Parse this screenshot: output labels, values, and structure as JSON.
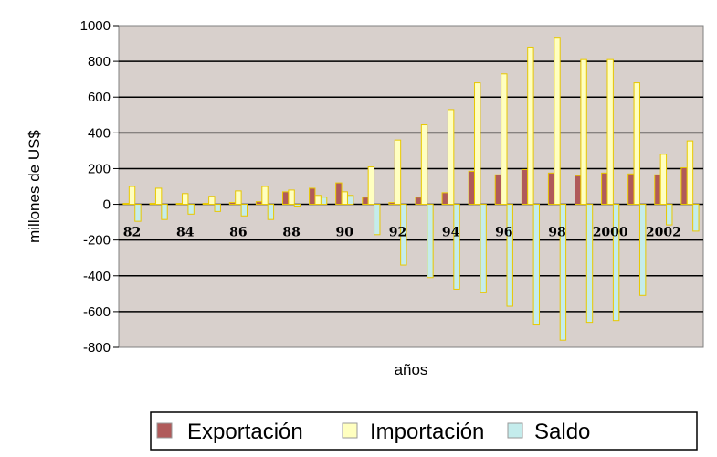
{
  "chart_data": {
    "type": "bar",
    "xlabel": "años",
    "ylabel": "millones de US$",
    "ylim": [
      -800,
      1000
    ],
    "yticks": [
      1000,
      800,
      600,
      400,
      200,
      0,
      -200,
      -400,
      -600,
      -800
    ],
    "ytick_labels": [
      "1000",
      "800",
      "600",
      "400",
      "200",
      "0",
      "-200",
      "-400",
      "-600",
      "-800"
    ],
    "grid": true,
    "legend": "bottom",
    "categories": [
      "82",
      "83",
      "84",
      "85",
      "86",
      "87",
      "88",
      "89",
      "90",
      "91",
      "92",
      "93",
      "94",
      "95",
      "96",
      "97",
      "98",
      "99",
      "2000",
      "2001",
      "2002",
      "2003"
    ],
    "x_tick_labels": [
      "82",
      "84",
      "86",
      "88",
      "90",
      "92",
      "94",
      "96",
      "98",
      "2000",
      "2002"
    ],
    "series": [
      {
        "name": "Exportación",
        "color": "#b05a5a",
        "values": [
          5,
          5,
          5,
          5,
          10,
          15,
          70,
          90,
          120,
          40,
          10,
          40,
          65,
          185,
          165,
          195,
          175,
          160,
          175,
          170,
          165,
          205
        ]
      },
      {
        "name": "Importación",
        "color": "#ffffc0",
        "values": [
          100,
          90,
          60,
          45,
          75,
          100,
          80,
          50,
          70,
          210,
          360,
          445,
          530,
          680,
          730,
          880,
          930,
          810,
          810,
          680,
          280,
          355
        ]
      },
      {
        "name": "Saldo",
        "color": "#c4ecec",
        "values": [
          -95,
          -85,
          -55,
          -40,
          -65,
          -85,
          -10,
          40,
          50,
          -170,
          -340,
          -410,
          -475,
          -495,
          -570,
          -675,
          -760,
          -660,
          -650,
          -510,
          -115,
          -150
        ]
      }
    ]
  }
}
